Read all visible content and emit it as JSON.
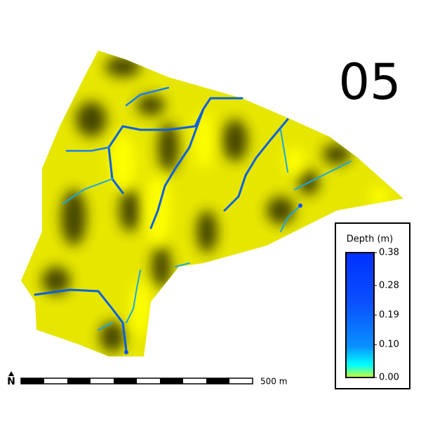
{
  "frame_label": "05",
  "legend": {
    "title": "Depth (m)",
    "lim": [
      0,
      0.38
    ],
    "ticks": [
      0.38,
      0.28,
      0.19,
      {
        "value": 0.1,
        "label": "0.10"
      },
      {
        "value": 0,
        "label": "0.00"
      }
    ]
  },
  "scale_bar": {
    "label": "500 m"
  },
  "north_arrow": {
    "label": "N"
  }
}
